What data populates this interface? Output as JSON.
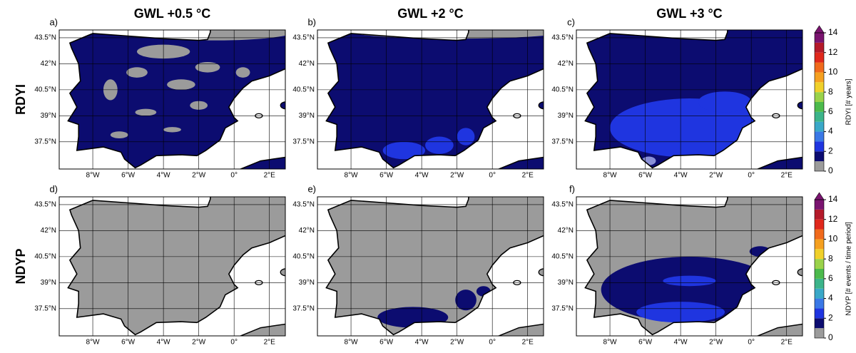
{
  "columns": [
    "GWL +0.5 °C",
    "GWL +2 °C",
    "GWL +3 °C"
  ],
  "rows": [
    {
      "label": "RDYI",
      "colorbar_label": "RDYI [# years]"
    },
    {
      "label": "NDYP",
      "colorbar_label": "NDYP [# events / time period]"
    }
  ],
  "panels": [
    "a)",
    "b)",
    "c)",
    "d)",
    "e)",
    "f)"
  ],
  "lat_ticks": [
    "43.5°N",
    "42°N",
    "40.5°N",
    "39°N",
    "37.5°N"
  ],
  "lon_ticks": [
    "8°W",
    "6°W",
    "4°W",
    "2°W",
    "0°",
    "2°E"
  ],
  "colorbar": {
    "ticks": [
      0,
      2,
      4,
      6,
      8,
      10,
      12,
      14
    ],
    "colors": [
      "#9b9b9b",
      "#0c0c70",
      "#1f35e0",
      "#3a78e6",
      "#3aa8c8",
      "#3cb48a",
      "#4cba4c",
      "#9ad24a",
      "#f0d02a",
      "#f5a020",
      "#f06a1c",
      "#e0281c",
      "#b41a2a",
      "#7a1470"
    ]
  }
}
